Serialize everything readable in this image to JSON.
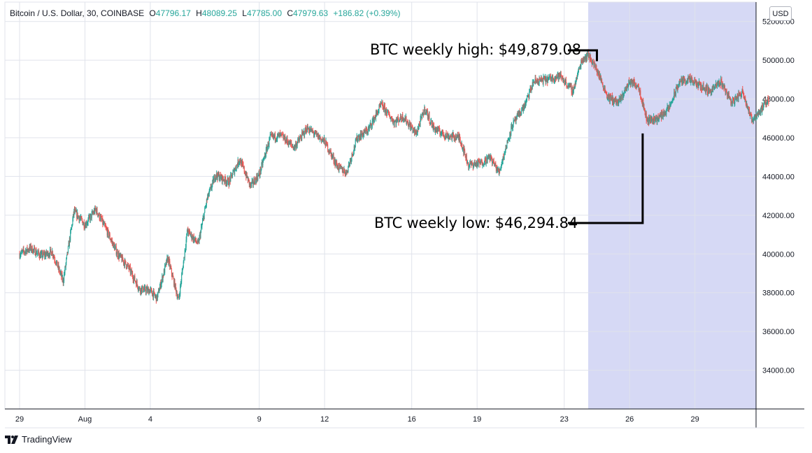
{
  "legend": {
    "symbol": "Bitcoin / U.S. Dollar, 30, COINBASE",
    "o_label": "O",
    "o_value": "47796.17",
    "h_label": "H",
    "h_value": "48089.25",
    "l_label": "L",
    "l_value": "47785.00",
    "c_label": "C",
    "c_value": "47979.63",
    "change": "+186.82 (+0.39%)"
  },
  "currency": "USD",
  "brand": "TradingView",
  "colors": {
    "up": "#26a69a",
    "down": "#ef5350",
    "grid": "#e0e3eb",
    "highlight": "#d6d9f5",
    "axis_text": "#131722",
    "annotation": "#000000"
  },
  "chart_data": {
    "type": "candlestick",
    "title": "Bitcoin / U.S. Dollar, 30, COINBASE",
    "xlabel": "",
    "ylabel": "USD",
    "ylim": [
      32000,
      53000
    ],
    "xlim_days": [
      0,
      34.5
    ],
    "x_ticks": [
      {
        "label": "29",
        "day": 0
      },
      {
        "label": "Aug",
        "day": 3
      },
      {
        "label": "4",
        "day": 6
      },
      {
        "label": "9",
        "day": 11
      },
      {
        "label": "12",
        "day": 14
      },
      {
        "label": "16",
        "day": 18
      },
      {
        "label": "19",
        "day": 21
      },
      {
        "label": "23",
        "day": 25
      },
      {
        "label": "26",
        "day": 28
      },
      {
        "label": "29",
        "day": 31
      }
    ],
    "y_ticks": [
      {
        "label": "34000.00",
        "value": 34000
      },
      {
        "label": "36000.00",
        "value": 36000
      },
      {
        "label": "38000.00",
        "value": 38000
      },
      {
        "label": "40000.00",
        "value": 40000
      },
      {
        "label": "42000.00",
        "value": 42000
      },
      {
        "label": "44000.00",
        "value": 44000
      },
      {
        "label": "46000.00",
        "value": 46000
      },
      {
        "label": "48000.00",
        "value": 48000
      },
      {
        "label": "50000.00",
        "value": 50000
      },
      {
        "label": "52000.00",
        "value": 52000
      }
    ],
    "highlight_range_days": [
      26.1,
      34.5
    ],
    "price_path": [
      [
        0,
        40000
      ],
      [
        0.5,
        40300
      ],
      [
        1,
        39900
      ],
      [
        1.5,
        40100
      ],
      [
        2,
        38600
      ],
      [
        2.5,
        42200
      ],
      [
        3,
        41500
      ],
      [
        3.5,
        42300
      ],
      [
        4,
        41200
      ],
      [
        4.5,
        40000
      ],
      [
        5,
        39300
      ],
      [
        5.5,
        38200
      ],
      [
        6,
        38100
      ],
      [
        6.3,
        37700
      ],
      [
        6.8,
        39800
      ],
      [
        7.3,
        37600
      ],
      [
        7.7,
        41200
      ],
      [
        8.2,
        40500
      ],
      [
        8.6,
        42800
      ],
      [
        9,
        44100
      ],
      [
        9.6,
        43700
      ],
      [
        10.1,
        44900
      ],
      [
        10.6,
        43500
      ],
      [
        11,
        44100
      ],
      [
        11.5,
        46000
      ],
      [
        12,
        46100
      ],
      [
        12.6,
        45500
      ],
      [
        13.2,
        46500
      ],
      [
        14,
        45800
      ],
      [
        14.6,
        44500
      ],
      [
        15,
        44200
      ],
      [
        15.5,
        46000
      ],
      [
        16,
        46400
      ],
      [
        16.6,
        47700
      ],
      [
        17.2,
        46800
      ],
      [
        17.6,
        47100
      ],
      [
        18.2,
        46200
      ],
      [
        18.6,
        47500
      ],
      [
        19,
        46500
      ],
      [
        19.6,
        46100
      ],
      [
        20.2,
        46000
      ],
      [
        20.6,
        44600
      ],
      [
        21.2,
        44700
      ],
      [
        21.6,
        45000
      ],
      [
        22,
        44200
      ],
      [
        22.6,
        46600
      ],
      [
        23.2,
        47700
      ],
      [
        23.6,
        48900
      ],
      [
        24.2,
        49000
      ],
      [
        24.8,
        49200
      ],
      [
        25.4,
        48400
      ],
      [
        25.8,
        50000
      ],
      [
        26.1,
        50300
      ],
      [
        26.5,
        49500
      ],
      [
        27,
        48100
      ],
      [
        27.5,
        47800
      ],
      [
        28,
        48900
      ],
      [
        28.4,
        48700
      ],
      [
        28.8,
        46900
      ],
      [
        29.3,
        47000
      ],
      [
        29.8,
        47500
      ],
      [
        30.3,
        48900
      ],
      [
        30.7,
        49000
      ],
      [
        31.2,
        48700
      ],
      [
        31.7,
        48400
      ],
      [
        32.2,
        48900
      ],
      [
        32.7,
        47800
      ],
      [
        33.2,
        48400
      ],
      [
        33.6,
        46900
      ],
      [
        34,
        47400
      ],
      [
        34.4,
        47980
      ]
    ],
    "annotations": [
      {
        "text": "BTC weekly high: $49,879.08",
        "value": 49879.08,
        "day": 26.5
      },
      {
        "text": "BTC weekly low: $46,294.84",
        "value": 46294.84,
        "day": 28.6
      }
    ]
  }
}
